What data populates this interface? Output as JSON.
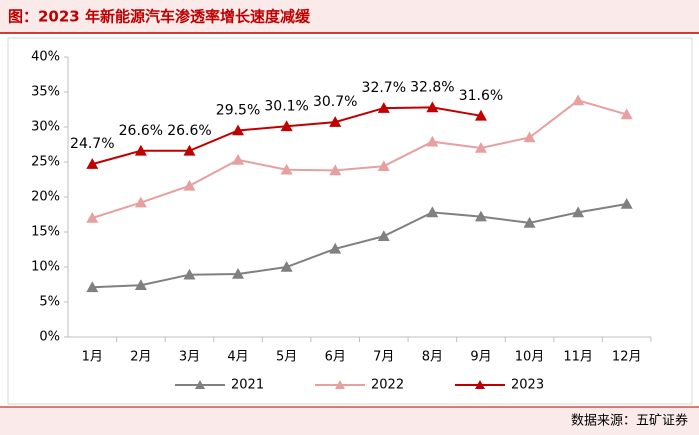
{
  "header": {
    "title": "图：2023 年新能源汽车渗透率增长速度减缓"
  },
  "chart_data": {
    "type": "line",
    "categories": [
      "1月",
      "2月",
      "3月",
      "4月",
      "5月",
      "6月",
      "7月",
      "8月",
      "9月",
      "10月",
      "11月",
      "12月"
    ],
    "series": [
      {
        "name": "2021",
        "color": "#808080",
        "values": [
          7.1,
          7.4,
          8.9,
          9.0,
          10.0,
          12.6,
          14.4,
          17.8,
          17.2,
          16.3,
          17.8,
          19.0
        ]
      },
      {
        "name": "2022",
        "color": "#e6a0a0",
        "values": [
          17.0,
          19.2,
          21.6,
          25.3,
          23.9,
          23.8,
          24.4,
          27.9,
          27.0,
          28.5,
          33.8,
          31.8
        ]
      },
      {
        "name": "2023",
        "color": "#c00000",
        "values": [
          24.7,
          26.6,
          26.6,
          29.5,
          30.1,
          30.7,
          32.7,
          32.8,
          31.6,
          null,
          null,
          null
        ],
        "value_labels": [
          "24.7%",
          "26.6%",
          "26.6%",
          "29.5%",
          "30.1%",
          "30.7%",
          "32.7%",
          "32.8%",
          "31.6%",
          null,
          null,
          null
        ]
      }
    ],
    "ylim": [
      0,
      40
    ],
    "yticks": [
      {
        "value": 0,
        "label": "0%"
      },
      {
        "value": 5,
        "label": "5%"
      },
      {
        "value": 10,
        "label": "10%"
      },
      {
        "value": 15,
        "label": "15%"
      },
      {
        "value": 20,
        "label": "20%"
      },
      {
        "value": 25,
        "label": "25%"
      },
      {
        "value": 30,
        "label": "30%"
      },
      {
        "value": 35,
        "label": "35%"
      },
      {
        "value": 40,
        "label": "40%"
      }
    ],
    "grid": false,
    "legend": "bottom"
  },
  "footer": {
    "source": "数据来源：五矿证券"
  }
}
